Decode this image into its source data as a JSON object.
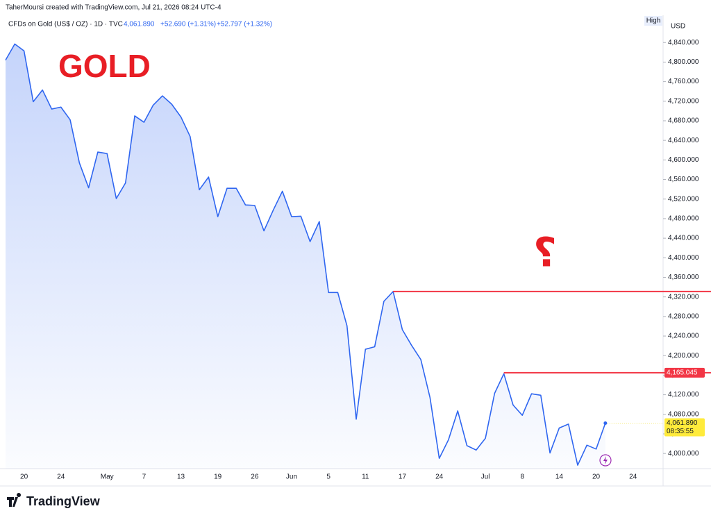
{
  "header": {
    "credit": "TaherMoursi created with TradingView.com, Jul 21, 2026 08:24 UTC-4",
    "symbol": "CFDs on Gold (US$ / OZ) · 1D · TVC",
    "price": "4,061.890",
    "change": "+52.690 (+1.31%)",
    "change_alt": "+52.797 (+1.32%)",
    "high": "High",
    "currency": "USD"
  },
  "chart_data": {
    "type": "line",
    "fill": true,
    "color": "#2f66f0",
    "categories": [
      null,
      null,
      "20",
      null,
      null,
      null,
      "24",
      null,
      null,
      null,
      null,
      "May",
      null,
      null,
      null,
      "7",
      null,
      null,
      null,
      "13",
      null,
      null,
      null,
      "19",
      null,
      null,
      null,
      "26",
      null,
      null,
      null,
      "Jun",
      null,
      null,
      null,
      "5",
      null,
      null,
      null,
      "11",
      null,
      null,
      null,
      "17",
      null,
      null,
      null,
      "24",
      null,
      null,
      null,
      null,
      "Jul",
      null,
      null,
      null,
      "8",
      null,
      null,
      null,
      "14",
      null,
      null,
      null,
      "20",
      null,
      null,
      null,
      "24"
    ],
    "values": [
      4804,
      4837,
      4823,
      4719,
      4743,
      4704,
      4708,
      4682,
      4594,
      4543,
      4616,
      4613,
      4521,
      4553,
      4690,
      4677,
      4712,
      4731,
      4714,
      4688,
      4648,
      4539,
      4565,
      4484,
      4542,
      4542,
      4508,
      4507,
      4455,
      4497,
      4536,
      4484,
      4485,
      4433,
      4474,
      4329,
      4329,
      4261,
      4070,
      4213,
      4218,
      4311,
      4331,
      4253,
      4221,
      4192,
      4114,
      3990,
      4028,
      4087,
      4016,
      4007,
      4031,
      4123,
      4163,
      4099,
      4078,
      4122,
      4119,
      4001,
      4052,
      4060,
      3976,
      4017,
      4009,
      4061.89,
      null,
      null,
      null
    ],
    "ylim": [
      3969,
      4890
    ],
    "yticks": [
      {
        "value": 4000,
        "label": "4,000.000"
      },
      {
        "value": 4040,
        "label": "4,040.000"
      },
      {
        "value": 4080,
        "label": "4,080.000"
      },
      {
        "value": 4120,
        "label": "4,120.000"
      },
      {
        "value": 4160,
        "label": "4,160.000"
      },
      {
        "value": 4200,
        "label": "4,200.000"
      },
      {
        "value": 4240,
        "label": "4,240.000"
      },
      {
        "value": 4280,
        "label": "4,280.000"
      },
      {
        "value": 4320,
        "label": "4,320.000"
      },
      {
        "value": 4360,
        "label": "4,360.000"
      },
      {
        "value": 4400,
        "label": "4,400.000"
      },
      {
        "value": 4440,
        "label": "4,440.000"
      },
      {
        "value": 4480,
        "label": "4,480.000"
      },
      {
        "value": 4520,
        "label": "4,520.000"
      },
      {
        "value": 4560,
        "label": "4,560.000"
      },
      {
        "value": 4600,
        "label": "4,600.000"
      },
      {
        "value": 4640,
        "label": "4,640.000"
      },
      {
        "value": 4680,
        "label": "4,680.000"
      },
      {
        "value": 4720,
        "label": "4,720.000"
      },
      {
        "value": 4760,
        "label": "4,760.000"
      },
      {
        "value": 4800,
        "label": "4,800.000"
      },
      {
        "value": 4840,
        "label": "4,840.000"
      }
    ],
    "grid": false,
    "last_price_label": "4,061.890",
    "countdown": "08:35:55",
    "levels": [
      {
        "value": 4331,
        "color": "#f23645"
      },
      {
        "value": 4165.045,
        "label": "4,165.045",
        "color": "#f23645"
      }
    ],
    "annotations": [
      {
        "text": "GOLD",
        "color": "#e81e25"
      },
      {
        "text": "؟",
        "color": "#e81e25"
      }
    ]
  },
  "footer": {
    "logo": "TradingView"
  }
}
